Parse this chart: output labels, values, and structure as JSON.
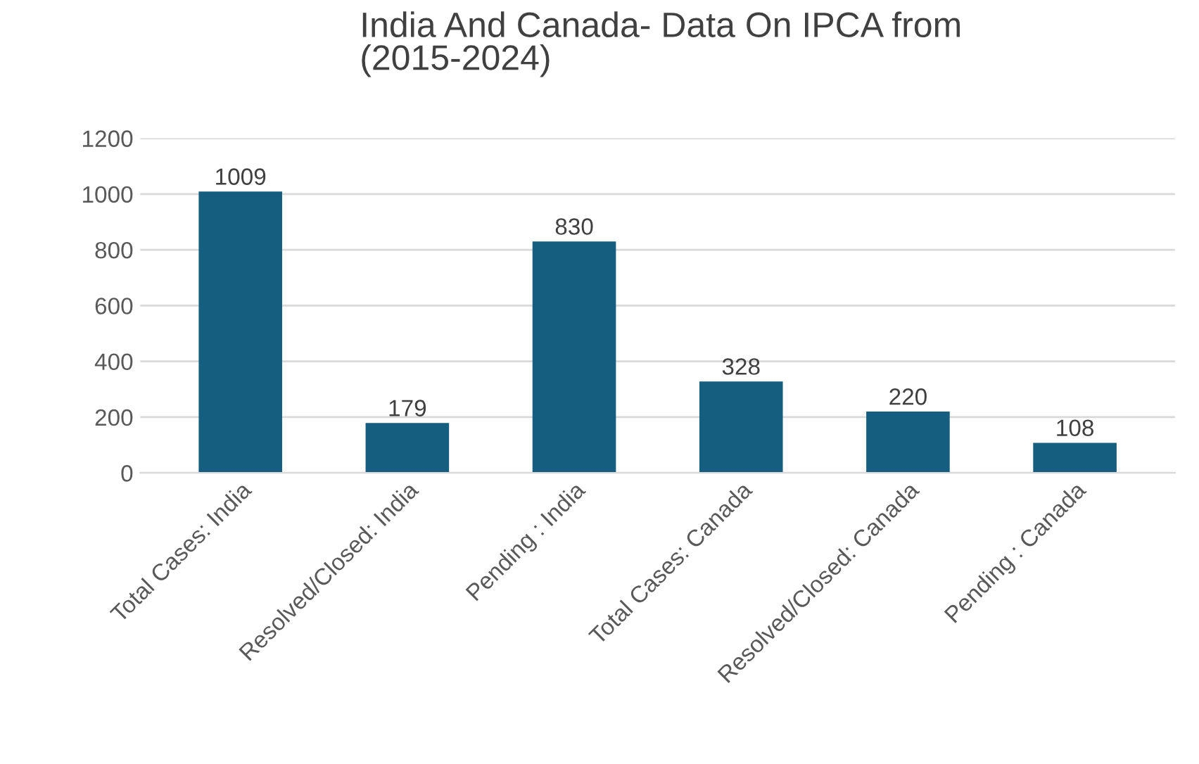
{
  "chart_data": {
    "type": "bar",
    "title": "India And Canada- Data On IPCA from\n(2015-2024)",
    "categories": [
      "Total Cases: India",
      "Resolved/Closed: India",
      "Pending : India",
      "Total Cases: Canada",
      "Resolved/Closed: Canada",
      "Pending : Canada"
    ],
    "values": [
      1009,
      179,
      830,
      328,
      220,
      108
    ],
    "color": "#165e80",
    "ylim": [
      0,
      1200
    ],
    "yticks": [
      0,
      200,
      400,
      600,
      800,
      1000,
      1200
    ],
    "grid": "y",
    "data_labels": true,
    "legend": false
  }
}
